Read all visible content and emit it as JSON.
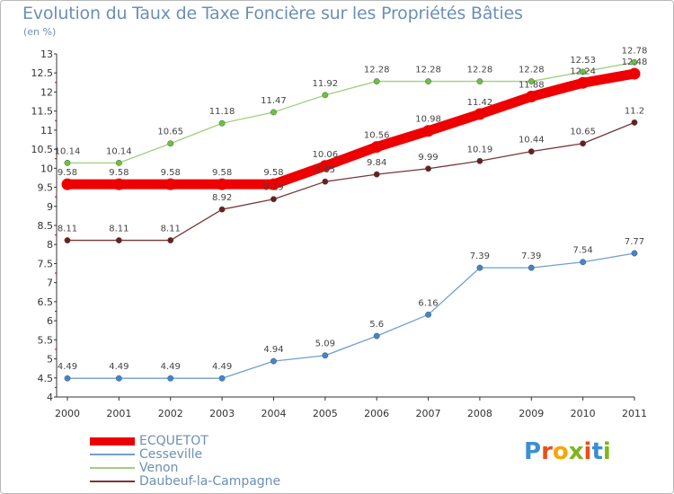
{
  "header": {
    "title": "Evolution du Taux de Taxe Foncière sur les Propriétés Bâties",
    "subtitle": "(en %)"
  },
  "logo": {
    "letters": [
      "P",
      "r",
      "o",
      "x",
      "i",
      "t",
      "i"
    ],
    "colors": [
      "#3a8fd4",
      "#e94e1b",
      "#f7a600",
      "#7fb51b",
      "#e94e1b",
      "#3a8fd4",
      "#7fb51b"
    ]
  },
  "chart_data": {
    "type": "line",
    "title": "Evolution du Taux de Taxe Foncière sur les Propriétés Bâties",
    "ylabel": "(en %)",
    "xlabel": "",
    "categories": [
      "2000",
      "2001",
      "2002",
      "2003",
      "2004",
      "2005",
      "2006",
      "2007",
      "2008",
      "2009",
      "2010",
      "2011"
    ],
    "ylim": [
      4,
      13
    ],
    "yticks": [
      4,
      4.5,
      5,
      5.5,
      6,
      6.5,
      7,
      7.5,
      8,
      8.5,
      9,
      9.5,
      10,
      10.5,
      11,
      11.5,
      12,
      12.5,
      13
    ],
    "ytick_labels": [
      "4",
      "4.5",
      "5",
      "5.5",
      "6",
      "6.5",
      "7",
      "7.5",
      "8",
      "8.5",
      "9",
      "9.5",
      "10",
      "10.5",
      "11",
      "11.5",
      "12",
      "12.5",
      "13"
    ],
    "grid": false,
    "legend_position": "bottom-left",
    "series": [
      {
        "name": "ECQUETOT",
        "color": "#ee0000",
        "marker_color": "#ee0000",
        "values": [
          9.58,
          9.58,
          9.58,
          9.58,
          9.58,
          10.06,
          10.56,
          10.98,
          11.42,
          11.88,
          12.24,
          12.48
        ],
        "labels": [
          "9.58",
          "9.58",
          "9.58",
          "9.58",
          "9.58",
          "10.06",
          "10.56",
          "10.98",
          "11.42",
          "11.88",
          "12.24",
          "12.48"
        ]
      },
      {
        "name": "Cesseville",
        "color": "#6f9fd2",
        "marker_color": "#3f85cf",
        "values": [
          4.49,
          4.49,
          4.49,
          4.49,
          4.94,
          5.09,
          5.6,
          6.16,
          7.39,
          7.39,
          7.54,
          7.77
        ],
        "labels": [
          "4.49",
          "4.49",
          "4.49",
          "4.49",
          "4.94",
          "5.09",
          "5.6",
          "6.16",
          "7.39",
          "7.39",
          "7.54",
          "7.77"
        ]
      },
      {
        "name": "Venon",
        "color": "#9ed07f",
        "marker_color": "#6cc23f",
        "values": [
          10.14,
          10.14,
          10.65,
          11.18,
          11.47,
          11.92,
          12.28,
          12.28,
          12.28,
          12.28,
          12.53,
          12.78
        ],
        "labels": [
          "10.14",
          "10.14",
          "10.65",
          "11.18",
          "11.47",
          "11.92",
          "12.28",
          "12.28",
          "12.28",
          "12.28",
          "12.53",
          "12.78"
        ]
      },
      {
        "name": "Daubeuf-la-Campagne",
        "color": "#7a3535",
        "marker_color": "#6a1f1f",
        "values": [
          8.11,
          8.11,
          8.11,
          8.92,
          9.19,
          9.65,
          9.84,
          9.99,
          10.19,
          10.44,
          10.65,
          11.2
        ],
        "labels": [
          "8.11",
          "8.11",
          "8.11",
          "8.92",
          "9.19",
          "9.65",
          "9.84",
          "9.99",
          "10.19",
          "10.44",
          "10.65",
          "11.2"
        ]
      }
    ]
  }
}
